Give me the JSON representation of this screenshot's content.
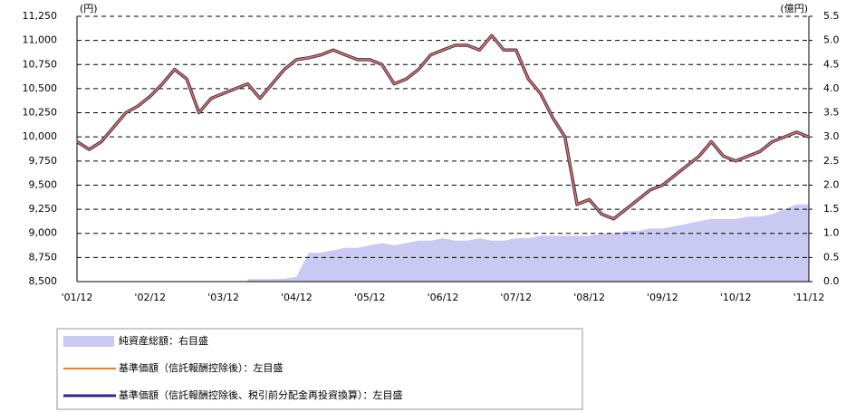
{
  "chart_data": {
    "type": "line",
    "y_unit": "(円)",
    "y2_unit": "(億円)",
    "categories": [
      "'01/12",
      null,
      null,
      null,
      null,
      null,
      "'02/12",
      null,
      null,
      null,
      null,
      null,
      "'03/12",
      null,
      null,
      null,
      null,
      null,
      "'04/12",
      null,
      null,
      null,
      null,
      null,
      "'05/12",
      null,
      null,
      null,
      null,
      null,
      "'06/12",
      null,
      null,
      null,
      null,
      null,
      "'07/12",
      null,
      null,
      null,
      null,
      null,
      "'08/12",
      null,
      null,
      null,
      null,
      null,
      "'09/12",
      null,
      null,
      null,
      null,
      null,
      "'10/12",
      null,
      null,
      null,
      null,
      null,
      "'11/12"
    ],
    "ylim": [
      8500,
      11250
    ],
    "yticks": [
      {
        "value": 8500,
        "label": "8,500"
      },
      {
        "value": 8750,
        "label": "8,750"
      },
      {
        "value": 9000,
        "label": "9,000"
      },
      {
        "value": 9250,
        "label": "9,250"
      },
      {
        "value": 9500,
        "label": "9,500"
      },
      {
        "value": 9750,
        "label": "9,750"
      },
      {
        "value": 10000,
        "label": "10,000"
      },
      {
        "value": 10250,
        "label": "10,250"
      },
      {
        "value": 10500,
        "label": "10,500"
      },
      {
        "value": 10750,
        "label": "10,750"
      },
      {
        "value": 11000,
        "label": "11,000"
      },
      {
        "value": 11250,
        "label": "11,250"
      }
    ],
    "y2lim": [
      0,
      5.5
    ],
    "y2ticks": [
      {
        "value": 0,
        "label": "0.0"
      },
      0.5,
      {
        "value": 1,
        "label": "1.0"
      },
      1.5,
      {
        "value": 2,
        "label": "2.0"
      },
      2.5,
      {
        "value": 3,
        "label": "3.0"
      },
      3.5,
      {
        "value": 4,
        "label": "4.0"
      },
      4.5,
      {
        "value": 5,
        "label": "5.0"
      },
      5.5
    ],
    "grid": true,
    "series": [
      {
        "name": "純資産総額：右目盛",
        "type": "area",
        "axis": "y2",
        "color": "#c9c9f2",
        "values": [
          null,
          null,
          null,
          null,
          null,
          null,
          null,
          null,
          null,
          null,
          null,
          null,
          null,
          null,
          0.05,
          0.05,
          0.05,
          0.06,
          0.1,
          0.6,
          0.6,
          0.65,
          0.7,
          0.7,
          0.75,
          0.8,
          0.75,
          0.8,
          0.85,
          0.85,
          0.9,
          0.85,
          0.85,
          0.9,
          0.85,
          0.85,
          0.9,
          0.9,
          0.95,
          0.95,
          0.95,
          0.95,
          0.95,
          1.0,
          1.0,
          1.05,
          1.05,
          1.1,
          1.1,
          1.15,
          1.2,
          1.25,
          1.3,
          1.3,
          1.3,
          1.35,
          1.35,
          1.4,
          1.5,
          1.6,
          1.6
        ]
      },
      {
        "name": "基準価額（信託報酬控除後）：左目盛",
        "type": "line",
        "color": "#f07a1e",
        "values": [
          9950,
          9870,
          9950,
          10100,
          10250,
          10320,
          10420,
          10550,
          10700,
          10600,
          10250,
          10400,
          10450,
          10500,
          10550,
          10400,
          10550,
          10700,
          10800,
          10820,
          10850,
          10900,
          10850,
          10800,
          10800,
          10750,
          10550,
          10600,
          10700,
          10850,
          10900,
          10950,
          10950,
          10900,
          11050,
          10900,
          10900,
          10600,
          10450,
          10200,
          10000,
          9300,
          9350,
          9200,
          9150,
          9250,
          9350,
          9450,
          9500,
          9600,
          9700,
          9800,
          9950,
          9800,
          9750,
          9800,
          9850,
          9950,
          10000,
          10050,
          10000
        ]
      },
      {
        "name": "基準価額（信託報酬控除後、税引前分配金再投資換算）：左目盛",
        "type": "line",
        "color": "#2b2a8a",
        "values": [
          9950,
          9870,
          9950,
          10100,
          10250,
          10320,
          10420,
          10550,
          10700,
          10600,
          10250,
          10400,
          10450,
          10500,
          10550,
          10400,
          10550,
          10700,
          10800,
          10820,
          10850,
          10900,
          10850,
          10800,
          10800,
          10750,
          10550,
          10600,
          10700,
          10850,
          10900,
          10950,
          10950,
          10900,
          11050,
          10900,
          10900,
          10600,
          10450,
          10200,
          10000,
          9300,
          9350,
          9200,
          9150,
          9250,
          9350,
          9450,
          9500,
          9600,
          9700,
          9800,
          9950,
          9800,
          9750,
          9800,
          9850,
          9950,
          10000,
          10050,
          10000
        ]
      }
    ]
  }
}
